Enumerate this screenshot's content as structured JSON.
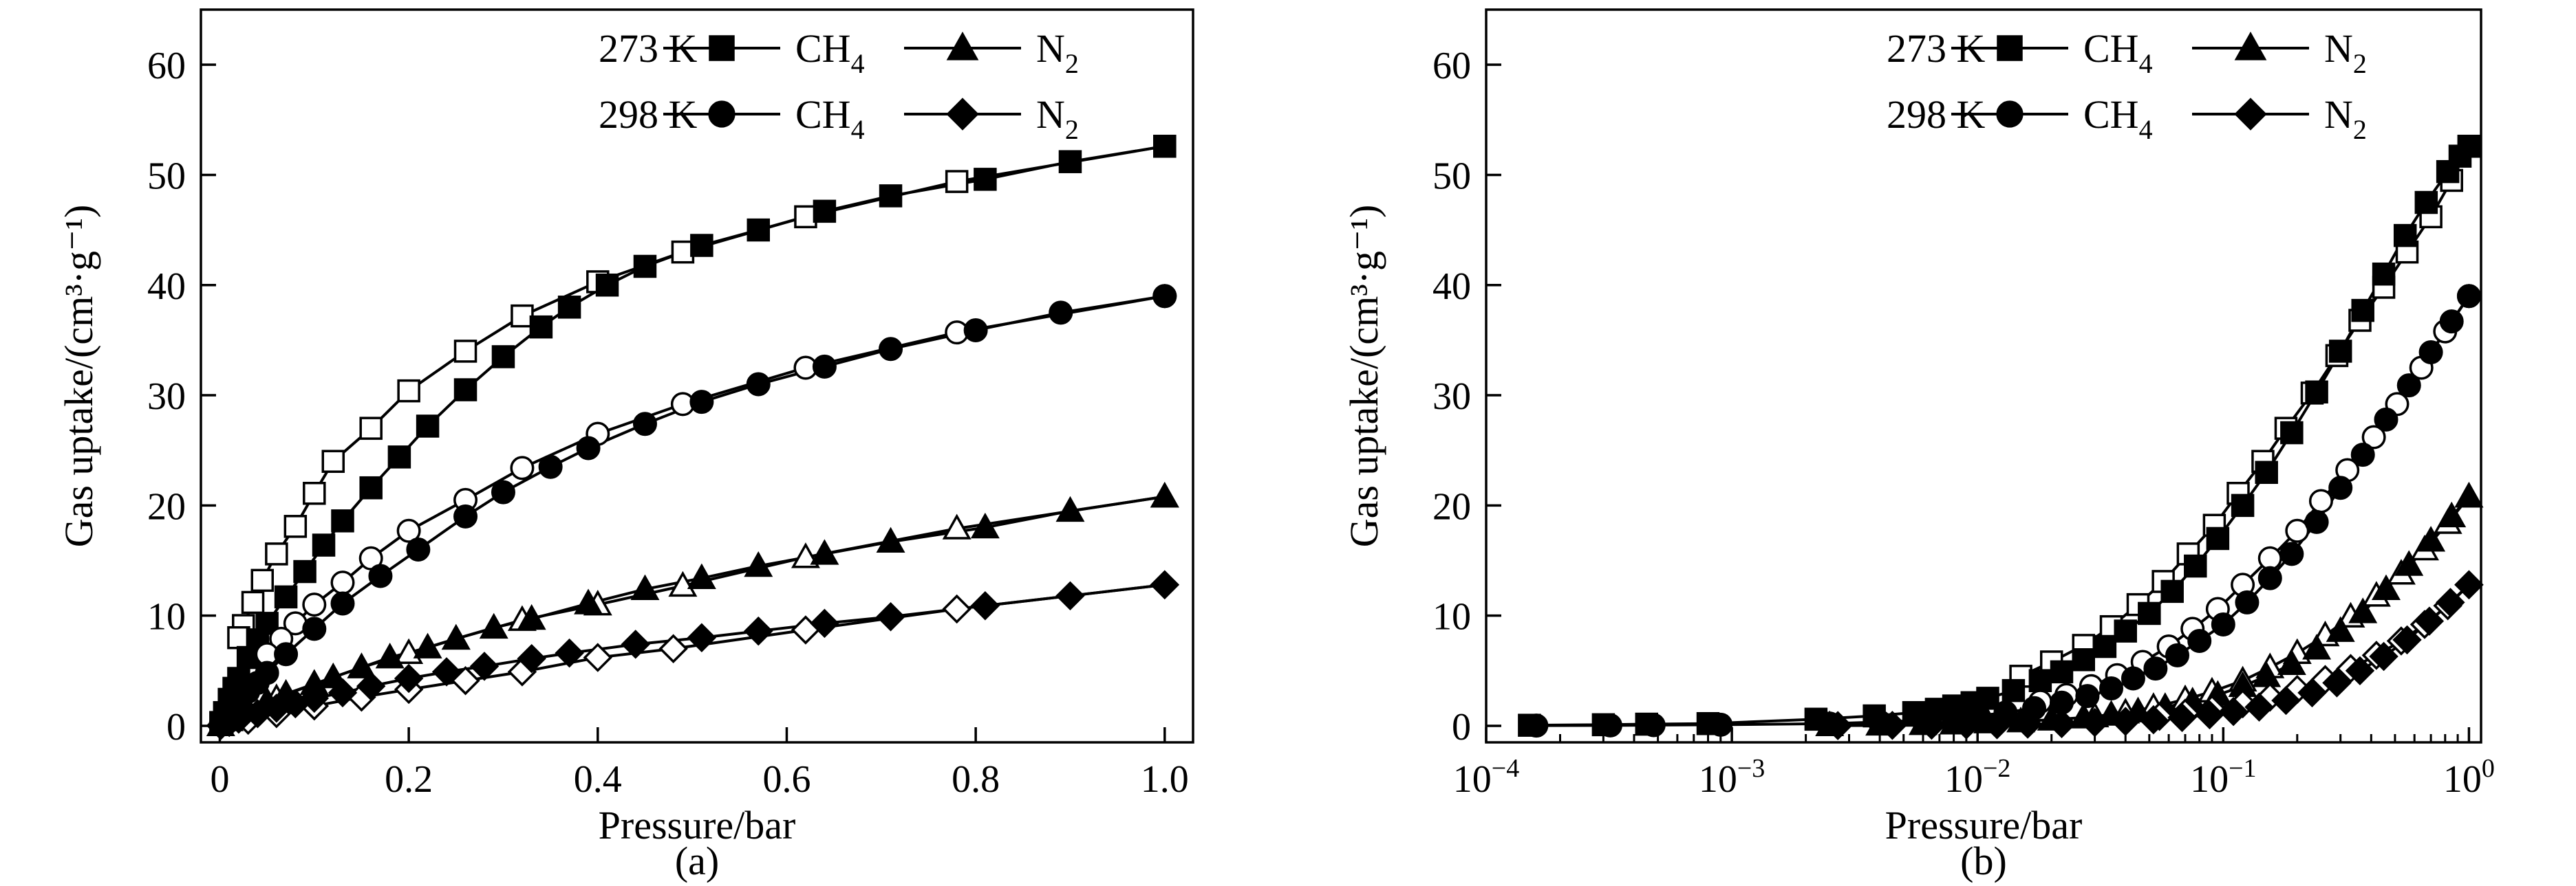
{
  "figure": {
    "colors": {
      "ink": "#000000",
      "open_fill": "#ffffff"
    },
    "legend": {
      "temps": [
        "273 K",
        "298 K"
      ],
      "gases": [
        {
          "base": "CH",
          "sub": "4"
        },
        {
          "base": "N",
          "sub": "2"
        }
      ],
      "markers": {
        "t273_ch4": "filled-square-icon",
        "t273_n2": "filled-triangle-icon",
        "t298_ch4": "filled-circle-icon",
        "t298_n2": "filled-diamond-icon"
      }
    }
  },
  "chart_data": [
    {
      "id": "a",
      "type": "line",
      "caption": "(a)",
      "xlabel": "Pressure/bar",
      "ylabel": "Gas uptake/(cm³·g⁻¹)",
      "xscale": "linear",
      "xlim": [
        -0.02,
        1.03
      ],
      "ylim": [
        -1.5,
        65
      ],
      "xticks": [
        0,
        0.2,
        0.4,
        0.6,
        0.8,
        1.0
      ],
      "xtick_labels": [
        "0",
        "0.2",
        "0.4",
        "0.6",
        "0.8",
        "1.0"
      ],
      "yticks": [
        0,
        10,
        20,
        30,
        40,
        50,
        60
      ],
      "ytick_labels": [
        "0",
        "10",
        "20",
        "30",
        "40",
        "50",
        "60"
      ],
      "legend_position": "top-right",
      "series": [
        {
          "name": "273 K CH4",
          "marker": "square",
          "adsorption": {
            "x": [
              0.001,
              0.005,
              0.01,
              0.015,
              0.02,
              0.03,
              0.04,
              0.05,
              0.07,
              0.09,
              0.11,
              0.13,
              0.16,
              0.19,
              0.22,
              0.26,
              0.3,
              0.34,
              0.37,
              0.41,
              0.45,
              0.51,
              0.57,
              0.64,
              0.71,
              0.81,
              0.9,
              1.0
            ],
            "y": [
              0.3,
              1.2,
              2.4,
              3.4,
              4.3,
              6.2,
              7.8,
              9.3,
              11.7,
              14.0,
              16.4,
              18.6,
              21.6,
              24.4,
              27.2,
              30.5,
              33.5,
              36.2,
              38.0,
              40.0,
              41.7,
              43.6,
              45.0,
              46.7,
              48.1,
              49.6,
              51.2,
              52.6
            ]
          },
          "desorption": {
            "x": [
              1.0,
              0.78,
              0.62,
              0.49,
              0.4,
              0.32,
              0.26,
              0.2,
              0.16,
              0.12,
              0.1,
              0.08,
              0.06,
              0.045,
              0.035,
              0.025,
              0.02
            ],
            "y": [
              52.6,
              49.4,
              46.2,
              43.0,
              40.3,
              37.2,
              34.0,
              30.4,
              27.0,
              24.0,
              21.1,
              18.1,
              15.6,
              13.2,
              11.2,
              9.1,
              8.0
            ]
          }
        },
        {
          "name": "298 K CH4",
          "marker": "circle",
          "adsorption": {
            "x": [
              0.001,
              0.005,
              0.01,
              0.015,
              0.02,
              0.03,
              0.04,
              0.05,
              0.07,
              0.1,
              0.13,
              0.17,
              0.21,
              0.26,
              0.3,
              0.35,
              0.39,
              0.45,
              0.51,
              0.57,
              0.64,
              0.71,
              0.8,
              0.89,
              1.0
            ],
            "y": [
              0.1,
              0.5,
              1.1,
              1.6,
              2.1,
              3.1,
              3.9,
              4.8,
              6.5,
              8.8,
              11.1,
              13.6,
              16.0,
              19.0,
              21.2,
              23.5,
              25.2,
              27.4,
              29.4,
              31.0,
              32.6,
              34.2,
              35.9,
              37.5,
              39.0
            ]
          },
          "desorption": {
            "x": [
              1.0,
              0.78,
              0.62,
              0.49,
              0.4,
              0.32,
              0.26,
              0.2,
              0.16,
              0.13,
              0.1,
              0.08,
              0.065,
              0.05
            ],
            "y": [
              39.0,
              35.7,
              32.5,
              29.2,
              26.5,
              23.4,
              20.5,
              17.7,
              15.2,
              13.0,
              11.0,
              9.3,
              7.9,
              6.5
            ]
          }
        },
        {
          "name": "273 K N2",
          "marker": "triangle",
          "adsorption": {
            "x": [
              0.001,
              0.01,
              0.02,
              0.03,
              0.05,
              0.07,
              0.1,
              0.12,
              0.15,
              0.18,
              0.22,
              0.25,
              0.29,
              0.33,
              0.39,
              0.45,
              0.51,
              0.57,
              0.64,
              0.71,
              0.81,
              0.9,
              1.0
            ],
            "y": [
              0.05,
              0.5,
              1.0,
              1.4,
              2.2,
              2.9,
              3.8,
              4.4,
              5.3,
              6.2,
              7.1,
              7.9,
              8.9,
              9.7,
              11.1,
              12.4,
              13.4,
              14.5,
              15.6,
              16.7,
              18.0,
              19.5,
              20.8
            ]
          },
          "desorption": {
            "x": [
              1.0,
              0.78,
              0.62,
              0.49,
              0.4,
              0.32,
              0.25,
              0.2,
              0.15,
              0.1,
              0.06,
              0.03
            ],
            "y": [
              20.8,
              17.9,
              15.3,
              12.7,
              11.0,
              9.6,
              7.9,
              6.6,
              5.3,
              3.8,
              2.5,
              1.3
            ]
          }
        },
        {
          "name": "298 K N2",
          "marker": "diamond",
          "adsorption": {
            "x": [
              0.001,
              0.01,
              0.02,
              0.04,
              0.06,
              0.08,
              0.1,
              0.13,
              0.16,
              0.2,
              0.24,
              0.28,
              0.33,
              0.37,
              0.44,
              0.51,
              0.57,
              0.64,
              0.71,
              0.81,
              0.9,
              1.0
            ],
            "y": [
              0.02,
              0.3,
              0.6,
              1.1,
              1.6,
              2.0,
              2.5,
              3.0,
              3.6,
              4.3,
              4.9,
              5.4,
              6.1,
              6.6,
              7.4,
              8.0,
              8.6,
              9.3,
              9.9,
              10.9,
              11.8,
              12.8
            ]
          },
          "desorption": {
            "x": [
              1.0,
              0.78,
              0.62,
              0.48,
              0.4,
              0.32,
              0.26,
              0.2,
              0.15,
              0.1,
              0.06,
              0.03
            ],
            "y": [
              12.8,
              10.6,
              8.7,
              7.0,
              6.2,
              4.9,
              4.1,
              3.3,
              2.6,
              1.8,
              1.1,
              0.5
            ]
          }
        }
      ]
    },
    {
      "id": "b",
      "type": "line",
      "caption": "(b)",
      "xlabel": "Pressure/bar",
      "ylabel": "Gas uptake/(cm³·g⁻¹)",
      "xscale": "log",
      "xlim": [
        0.0001,
        1.12
      ],
      "ylim": [
        -1.5,
        65
      ],
      "xticks": [
        0.0001,
        0.001,
        0.01,
        0.1,
        1
      ],
      "xtick_labels": [
        {
          "base": "10",
          "exp": "−4"
        },
        {
          "base": "10",
          "exp": "−3"
        },
        {
          "base": "10",
          "exp": "−2"
        },
        {
          "base": "10",
          "exp": "−1"
        },
        {
          "base": "10",
          "exp": "0"
        }
      ],
      "yticks": [
        0,
        10,
        20,
        30,
        40,
        50,
        60
      ],
      "ytick_labels": [
        "0",
        "10",
        "20",
        "30",
        "40",
        "50",
        "60"
      ],
      "legend_position": "top-right",
      "series": [
        {
          "name": "273 K CH4",
          "marker": "square",
          "adsorption": {
            "x": [
              0.00015,
              0.0003,
              0.00045,
              0.0008,
              0.0022,
              0.0038,
              0.0055,
              0.0068,
              0.008,
              0.0095,
              0.011,
              0.014,
              0.018,
              0.022,
              0.027,
              0.033,
              0.04,
              0.05,
              0.062,
              0.077,
              0.095,
              0.12,
              0.15,
              0.19,
              0.24,
              0.3,
              0.37,
              0.45,
              0.55,
              0.67,
              0.82,
              0.92,
              1.0
            ],
            "y": [
              0.05,
              0.1,
              0.15,
              0.2,
              0.6,
              0.9,
              1.2,
              1.5,
              1.8,
              2.1,
              2.5,
              3.2,
              4.1,
              4.9,
              6.0,
              7.2,
              8.6,
              10.2,
              12.2,
              14.5,
              17.0,
              20.0,
              23.0,
              26.6,
              30.3,
              34.0,
              37.7,
              41.0,
              44.5,
              47.5,
              50.3,
              51.7,
              52.6
            ]
          },
          "desorption": {
            "x": [
              1.0,
              0.85,
              0.7,
              0.56,
              0.45,
              0.36,
              0.29,
              0.23,
              0.18,
              0.145,
              0.115,
              0.092,
              0.072,
              0.057,
              0.045,
              0.035,
              0.027,
              0.02,
              0.015
            ],
            "y": [
              52.6,
              49.5,
              46.2,
              43.0,
              39.8,
              36.8,
              33.6,
              30.2,
              27.0,
              24.0,
              21.1,
              18.2,
              15.6,
              13.1,
              11.0,
              9.0,
              7.3,
              5.8,
              4.5
            ]
          }
        },
        {
          "name": "298 K CH4",
          "marker": "circle",
          "adsorption": {
            "x": [
              0.00016,
              0.00032,
              0.00048,
              0.0009,
              0.0025,
              0.004,
              0.006,
              0.008,
              0.01,
              0.013,
              0.017,
              0.022,
              0.028,
              0.035,
              0.043,
              0.053,
              0.065,
              0.08,
              0.1,
              0.125,
              0.155,
              0.19,
              0.24,
              0.3,
              0.37,
              0.46,
              0.57,
              0.7,
              0.85,
              1.0
            ],
            "y": [
              0.02,
              0.04,
              0.06,
              0.1,
              0.2,
              0.35,
              0.5,
              0.7,
              0.9,
              1.2,
              1.6,
              2.1,
              2.7,
              3.4,
              4.3,
              5.2,
              6.4,
              7.7,
              9.2,
              11.2,
              13.4,
              15.6,
              18.5,
              21.6,
              24.6,
              27.8,
              30.9,
              33.9,
              36.7,
              39.0
            ]
          },
          "desorption": {
            "x": [
              1.0,
              0.8,
              0.64,
              0.51,
              0.41,
              0.32,
              0.25,
              0.2,
              0.155,
              0.12,
              0.095,
              0.075,
              0.06,
              0.047,
              0.037,
              0.029,
              0.023,
              0.018
            ],
            "y": [
              39.0,
              35.8,
              32.5,
              29.2,
              26.2,
              23.2,
              20.4,
              17.7,
              15.2,
              12.8,
              10.6,
              8.8,
              7.2,
              5.8,
              4.6,
              3.6,
              2.8,
              2.2
            ]
          }
        },
        {
          "name": "273 K N2",
          "marker": "triangle",
          "adsorption": {
            "x": [
              0.0025,
              0.004,
              0.006,
              0.008,
              0.011,
              0.015,
              0.02,
              0.027,
              0.035,
              0.045,
              0.058,
              0.075,
              0.095,
              0.12,
              0.15,
              0.19,
              0.24,
              0.3,
              0.37,
              0.46,
              0.57,
              0.7,
              0.85,
              1.0
            ],
            "y": [
              0.05,
              0.1,
              0.15,
              0.2,
              0.3,
              0.4,
              0.55,
              0.75,
              1.0,
              1.3,
              1.7,
              2.2,
              2.8,
              3.6,
              4.5,
              5.6,
              7.0,
              8.6,
              10.3,
              12.4,
              14.6,
              16.8,
              19.0,
              20.8
            ]
          },
          "desorption": {
            "x": [
              1.0,
              0.82,
              0.66,
              0.53,
              0.42,
              0.33,
              0.26,
              0.2,
              0.155,
              0.12,
              0.09,
              0.07,
              0.052,
              0.04,
              0.03
            ],
            "y": [
              20.8,
              18.4,
              16.0,
              13.8,
              11.8,
              9.9,
              8.2,
              6.6,
              5.3,
              4.1,
              3.1,
              2.4,
              1.7,
              1.2,
              0.85
            ]
          }
        },
        {
          "name": "298 K N2",
          "marker": "diamond",
          "adsorption": {
            "x": [
              0.0027,
              0.0045,
              0.0065,
              0.009,
              0.012,
              0.016,
              0.022,
              0.03,
              0.04,
              0.052,
              0.068,
              0.088,
              0.11,
              0.14,
              0.18,
              0.23,
              0.29,
              0.36,
              0.45,
              0.56,
              0.69,
              0.84,
              1.0
            ],
            "y": [
              0.02,
              0.04,
              0.06,
              0.08,
              0.1,
              0.15,
              0.2,
              0.3,
              0.4,
              0.55,
              0.75,
              1.0,
              1.3,
              1.7,
              2.3,
              3.0,
              3.9,
              5.0,
              6.3,
              7.8,
              9.5,
              11.2,
              12.8
            ]
          },
          "desorption": {
            "x": [
              1.0,
              0.82,
              0.66,
              0.53,
              0.42,
              0.33,
              0.26,
              0.2,
              0.155,
              0.12,
              0.09,
              0.07,
              0.055
            ],
            "y": [
              12.8,
              10.9,
              9.2,
              7.7,
              6.4,
              5.2,
              4.2,
              3.3,
              2.6,
              2.0,
              1.5,
              1.15,
              0.85
            ]
          }
        }
      ]
    }
  ]
}
